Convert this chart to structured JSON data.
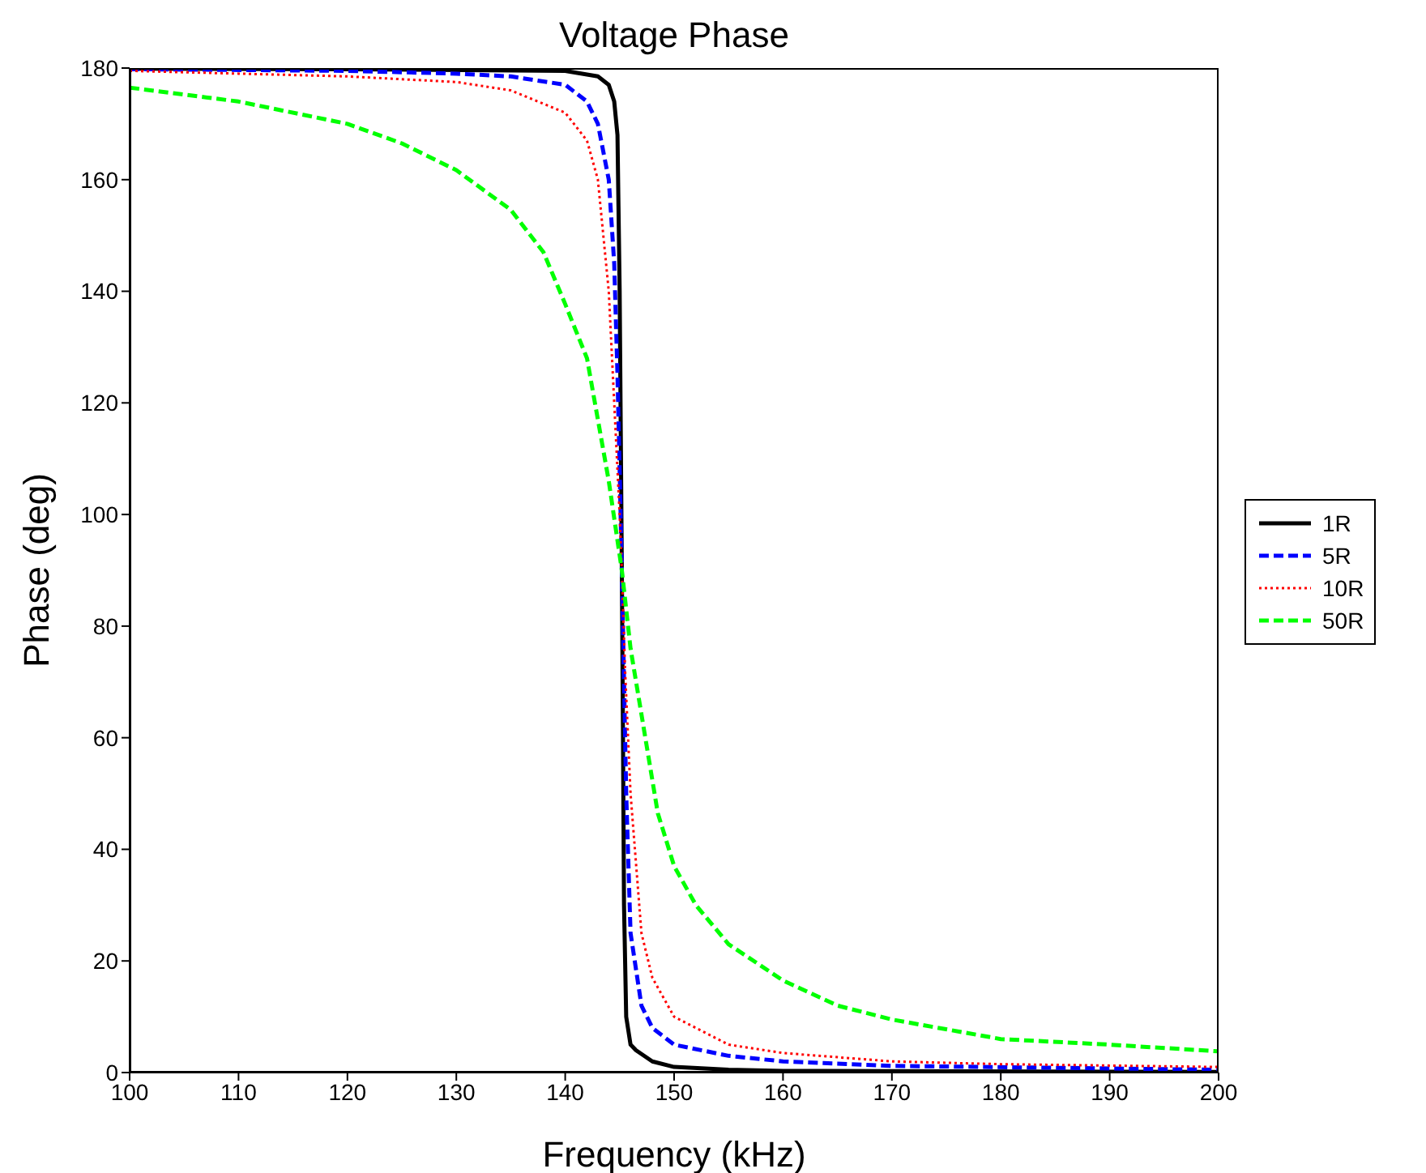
{
  "chart_data": {
    "type": "line",
    "title": "Voltage Phase",
    "xlabel": "Frequency (kHz)",
    "ylabel": "Phase (deg)",
    "xlim": [
      100,
      200
    ],
    "xticks": [
      100,
      110,
      120,
      130,
      140,
      150,
      160,
      170,
      180,
      190,
      200
    ],
    "ylim": [
      0,
      180
    ],
    "yticks": [
      0,
      20,
      40,
      60,
      80,
      100,
      120,
      140,
      160,
      180
    ],
    "legend": "right",
    "marker": "none",
    "series": [
      {
        "name": "1R",
        "color": "#000000",
        "line_style": "solid",
        "x": [
          100,
          120,
          140,
          143,
          144,
          144.5,
          144.8,
          145,
          145.1,
          145.2,
          145.3,
          145.4,
          145.6,
          146,
          146.5,
          148,
          150,
          155,
          160,
          200
        ],
        "values": [
          179.9,
          179.8,
          179.5,
          178.5,
          177,
          174,
          168,
          140,
          115,
          90,
          62,
          30,
          10,
          5,
          4,
          2,
          1,
          0.5,
          0.3,
          0.1
        ]
      },
      {
        "name": "5R",
        "color": "#0000ff",
        "line_style": "dashed",
        "x": [
          100,
          120,
          130,
          135,
          140,
          142,
          143,
          144,
          144.5,
          144.8,
          145,
          145.2,
          145.4,
          145.6,
          146,
          147,
          148,
          150,
          155,
          160,
          170,
          200
        ],
        "values": [
          179.8,
          179.5,
          179,
          178.5,
          177,
          174,
          170,
          160,
          145,
          125,
          108,
          90,
          70,
          50,
          25,
          12,
          8,
          5,
          3,
          2,
          1.2,
          0.5
        ]
      },
      {
        "name": "10R",
        "color": "#ff0000",
        "line_style": "dotted",
        "x": [
          100,
          110,
          120,
          130,
          135,
          140,
          142,
          143,
          144,
          144.5,
          145,
          145.2,
          145.5,
          146,
          147,
          148,
          150,
          155,
          160,
          170,
          180,
          200
        ],
        "values": [
          179.5,
          179,
          178.5,
          177.5,
          176,
          172,
          167,
          160,
          140,
          120,
          100,
          90,
          72,
          50,
          25,
          17,
          10,
          5,
          3.5,
          2,
          1.5,
          1
        ]
      },
      {
        "name": "50R",
        "color": "#00ff00",
        "line_style": "dashed",
        "x": [
          100,
          110,
          120,
          125,
          130,
          135,
          138,
          140,
          142,
          144,
          145.2,
          146,
          148.5,
          150,
          152,
          155,
          160,
          165,
          170,
          180,
          190,
          200
        ],
        "values": [
          176.5,
          174,
          170,
          166.5,
          161.7,
          154.6,
          147,
          137.7,
          128,
          106,
          90,
          76,
          46.5,
          37,
          30,
          23,
          16.5,
          12,
          9.5,
          6,
          5,
          3.8
        ]
      }
    ]
  }
}
